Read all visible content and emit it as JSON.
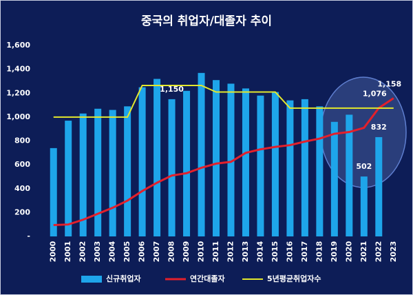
{
  "chart_data": {
    "type": "bar",
    "title": "중국의 취업자/대졸자 추이",
    "categories": [
      "2000",
      "2001",
      "2002",
      "2003",
      "2004",
      "2005",
      "2006",
      "2007",
      "2008",
      "2009",
      "2010",
      "2011",
      "2012",
      "2013",
      "2014",
      "2015",
      "2016",
      "2017",
      "2018",
      "2019",
      "2020",
      "2021",
      "2022",
      "2023"
    ],
    "series": [
      {
        "name": "신규취업자",
        "type": "bar",
        "color": "#1ea5ea",
        "values": [
          740,
          970,
          1030,
          1070,
          1060,
          1090,
          1250,
          1320,
          1150,
          1220,
          1370,
          1310,
          1280,
          1240,
          1180,
          1210,
          1140,
          1150,
          1090,
          960,
          1020,
          502,
          832,
          null
        ],
        "value_labels": [
          null,
          null,
          null,
          null,
          null,
          null,
          null,
          null,
          "1,150",
          null,
          null,
          null,
          null,
          null,
          null,
          null,
          null,
          null,
          null,
          null,
          null,
          "502",
          "832",
          null
        ]
      },
      {
        "name": "연간대졸자",
        "type": "line",
        "color": "#e3202b",
        "values": [
          95,
          100,
          140,
          190,
          240,
          300,
          380,
          450,
          510,
          530,
          575,
          610,
          625,
          700,
          730,
          750,
          765,
          795,
          820,
          860,
          875,
          910,
          1076,
          1158
        ],
        "value_labels": [
          null,
          null,
          null,
          null,
          null,
          null,
          null,
          null,
          null,
          null,
          null,
          null,
          null,
          null,
          null,
          null,
          null,
          null,
          null,
          null,
          null,
          null,
          "1,076",
          "1,158"
        ]
      },
      {
        "name": "5년평균취업자수",
        "type": "line",
        "color": "#e4e82c",
        "values": [
          1000,
          1000,
          1000,
          1000,
          1000,
          1000,
          1265,
          1265,
          1265,
          1265,
          1265,
          1210,
          1210,
          1210,
          1210,
          1210,
          1075,
          1075,
          1075,
          1075,
          1075,
          1075,
          1075,
          1075
        ]
      }
    ],
    "ylim": [
      0,
      1600
    ],
    "yticks": [
      {
        "value": 0,
        "label": "-"
      },
      200,
      400,
      600,
      800,
      {
        "value": 1000,
        "label": "1,000"
      },
      {
        "value": 1200,
        "label": "1,200"
      },
      {
        "value": 1400,
        "label": "1,400"
      },
      {
        "value": 1600,
        "label": "1,600"
      }
    ],
    "legend": "bottom"
  }
}
